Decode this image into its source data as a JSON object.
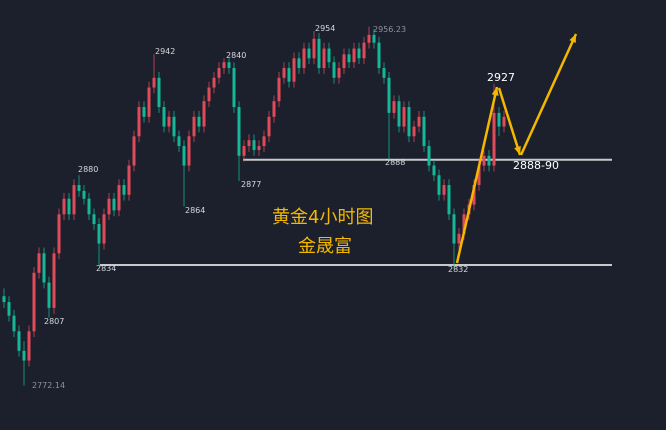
{
  "chart_data": {
    "type": "candlestick",
    "title": "黄金4小时图",
    "subtitle": "金晟富",
    "colors": {
      "up": "#e04b5a",
      "down": "#14b897",
      "background": "#1b202c",
      "level_line": "#c8c9cc",
      "arrow": "#f5b800"
    },
    "grid": false,
    "ohlc": [
      [
        2818,
        2822,
        2812,
        2815
      ],
      [
        2815,
        2818,
        2805,
        2808
      ],
      [
        2808,
        2811,
        2797,
        2800
      ],
      [
        2800,
        2803,
        2787,
        2790
      ],
      [
        2790,
        2795,
        2772.14,
        2785
      ],
      [
        2785,
        2803,
        2782,
        2800
      ],
      [
        2800,
        2833,
        2797,
        2830
      ],
      [
        2830,
        2843,
        2827,
        2840
      ],
      [
        2840,
        2843,
        2822,
        2825
      ],
      [
        2825,
        2828,
        2807,
        2812
      ],
      [
        2812,
        2843,
        2809,
        2840
      ],
      [
        2840,
        2863,
        2837,
        2860
      ],
      [
        2860,
        2871,
        2857,
        2868
      ],
      [
        2868,
        2871,
        2857,
        2860
      ],
      [
        2860,
        2878,
        2857,
        2875
      ],
      [
        2875,
        2880,
        2869,
        2872
      ],
      [
        2872,
        2875,
        2865,
        2868
      ],
      [
        2868,
        2871,
        2857,
        2860
      ],
      [
        2860,
        2863,
        2852,
        2855
      ],
      [
        2855,
        2858,
        2834,
        2845
      ],
      [
        2845,
        2863,
        2842,
        2860
      ],
      [
        2860,
        2871,
        2857,
        2868
      ],
      [
        2868,
        2871,
        2859,
        2862
      ],
      [
        2862,
        2878,
        2859,
        2875
      ],
      [
        2875,
        2878,
        2867,
        2870
      ],
      [
        2870,
        2888,
        2867,
        2885
      ],
      [
        2885,
        2903,
        2882,
        2900
      ],
      [
        2900,
        2918,
        2897,
        2915
      ],
      [
        2915,
        2918,
        2907,
        2910
      ],
      [
        2910,
        2928,
        2907,
        2925
      ],
      [
        2925,
        2942,
        2922,
        2930
      ],
      [
        2930,
        2933,
        2912,
        2915
      ],
      [
        2915,
        2918,
        2902,
        2905
      ],
      [
        2905,
        2913,
        2902,
        2910
      ],
      [
        2910,
        2913,
        2897,
        2900
      ],
      [
        2900,
        2903,
        2892,
        2895
      ],
      [
        2895,
        2898,
        2864,
        2885
      ],
      [
        2885,
        2903,
        2882,
        2900
      ],
      [
        2900,
        2913,
        2897,
        2910
      ],
      [
        2910,
        2913,
        2902,
        2905
      ],
      [
        2905,
        2921,
        2902,
        2918
      ],
      [
        2918,
        2928,
        2915,
        2925
      ],
      [
        2925,
        2933,
        2922,
        2930
      ],
      [
        2930,
        2938,
        2927,
        2935
      ],
      [
        2935,
        2940,
        2932,
        2938
      ],
      [
        2938,
        2940,
        2932,
        2935
      ],
      [
        2935,
        2938,
        2912,
        2915
      ],
      [
        2915,
        2918,
        2877,
        2890
      ],
      [
        2890,
        2898,
        2887,
        2895
      ],
      [
        2895,
        2901,
        2892,
        2898
      ],
      [
        2898,
        2901,
        2890,
        2893
      ],
      [
        2893,
        2898,
        2890,
        2895
      ],
      [
        2895,
        2903,
        2892,
        2900
      ],
      [
        2900,
        2913,
        2897,
        2910
      ],
      [
        2910,
        2921,
        2907,
        2918
      ],
      [
        2918,
        2933,
        2915,
        2930
      ],
      [
        2930,
        2938,
        2927,
        2935
      ],
      [
        2935,
        2938,
        2925,
        2928
      ],
      [
        2928,
        2943,
        2925,
        2940
      ],
      [
        2940,
        2943,
        2932,
        2935
      ],
      [
        2935,
        2948,
        2932,
        2945
      ],
      [
        2945,
        2948,
        2937,
        2940
      ],
      [
        2940,
        2954,
        2937,
        2950
      ],
      [
        2950,
        2953,
        2932,
        2935
      ],
      [
        2935,
        2948,
        2932,
        2945
      ],
      [
        2945,
        2948,
        2935,
        2938
      ],
      [
        2938,
        2941,
        2927,
        2930
      ],
      [
        2930,
        2938,
        2927,
        2935
      ],
      [
        2935,
        2945,
        2932,
        2942
      ],
      [
        2942,
        2945,
        2935,
        2938
      ],
      [
        2938,
        2948,
        2935,
        2945
      ],
      [
        2945,
        2948,
        2937,
        2940
      ],
      [
        2940,
        2951,
        2937,
        2948
      ],
      [
        2948,
        2956.23,
        2945,
        2952
      ],
      [
        2952,
        2955,
        2945,
        2948
      ],
      [
        2948,
        2951,
        2932,
        2935
      ],
      [
        2935,
        2938,
        2927,
        2930
      ],
      [
        2930,
        2933,
        2888,
        2912
      ],
      [
        2912,
        2921,
        2909,
        2918
      ],
      [
        2918,
        2921,
        2902,
        2905
      ],
      [
        2905,
        2918,
        2902,
        2915
      ],
      [
        2915,
        2918,
        2897,
        2900
      ],
      [
        2900,
        2908,
        2897,
        2905
      ],
      [
        2905,
        2913,
        2902,
        2910
      ],
      [
        2910,
        2913,
        2892,
        2895
      ],
      [
        2895,
        2898,
        2882,
        2885
      ],
      [
        2885,
        2888,
        2877,
        2880
      ],
      [
        2880,
        2883,
        2867,
        2870
      ],
      [
        2870,
        2878,
        2867,
        2875
      ],
      [
        2875,
        2878,
        2857,
        2860
      ],
      [
        2860,
        2863,
        2832,
        2845
      ],
      [
        2845,
        2853,
        2842,
        2850
      ],
      [
        2850,
        2863,
        2847,
        2860
      ],
      [
        2860,
        2868,
        2857,
        2865
      ],
      [
        2865,
        2878,
        2862,
        2875
      ],
      [
        2875,
        2888,
        2872,
        2885
      ],
      [
        2885,
        2893,
        2882,
        2890
      ],
      [
        2890,
        2893,
        2882,
        2885
      ],
      [
        2885,
        2927,
        2882,
        2912
      ],
      [
        2912,
        2915,
        2900,
        2905
      ],
      [
        2905,
        2913,
        2902,
        2910
      ]
    ],
    "price_labels": {
      "high_max": "2956.23",
      "low_min": "2772.14",
      "l2807": "2807",
      "l2880": "2880",
      "l2834": "2834",
      "l2942": "2942",
      "l2864": "2864",
      "l2840": "2840",
      "l2877": "2877",
      "l2954": "2954",
      "l2888": "2888",
      "l2832": "2832"
    },
    "levels": [
      2834,
      2888
    ],
    "annotations": {
      "target_high": "2927",
      "support_zone": "2888-90"
    }
  }
}
